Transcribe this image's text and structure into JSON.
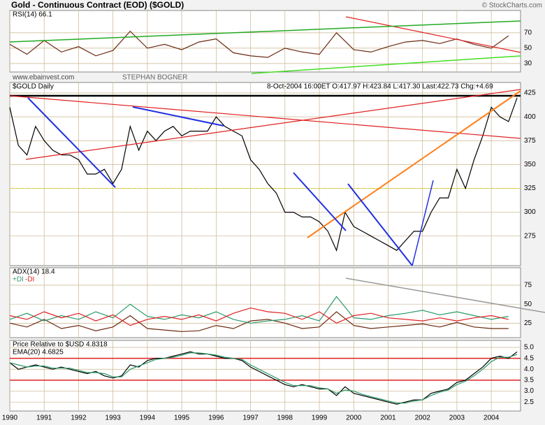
{
  "header": {
    "title": "Gold - Continuous Contract (EOD) ($GOLD)",
    "credit": "© StockCharts.com",
    "watermark": "www.ebainvest.com",
    "author": "STEPHAN BOGNER"
  },
  "chart_data": [
    {
      "type": "line",
      "xlim": [
        1990,
        2004.85
      ],
      "ylim": [
        19,
        99
      ],
      "yticks": [
        70,
        50,
        30
      ],
      "grid": true,
      "x": [
        1990,
        1990.5,
        1991,
        1991.5,
        1992,
        1992.5,
        1993,
        1993.5,
        1994,
        1994.5,
        1995,
        1995.5,
        1996,
        1996.5,
        1997,
        1997.5,
        1998,
        1998.5,
        1999,
        1999.5,
        2000,
        2000.5,
        2001,
        2001.5,
        2002,
        2002.5,
        2003,
        2003.5,
        2004,
        2004.5
      ],
      "series": [
        {
          "name": "RSI(14) 66.1",
          "color": "#6b2a10",
          "values": [
            55,
            42,
            60,
            45,
            52,
            40,
            47,
            72,
            50,
            55,
            48,
            58,
            62,
            44,
            40,
            38,
            50,
            45,
            42,
            70,
            48,
            45,
            52,
            58,
            60,
            56,
            62,
            55,
            50,
            66
          ]
        }
      ]
    },
    {
      "type": "line",
      "title": "$GOLD Daily",
      "subtitle": "8-Oct-2004 16:00ET O:417.97 H:423.84 L:417.30 Last:422.73 Chg:+4.69",
      "xlim": [
        1990,
        2004.85
      ],
      "ylim": [
        244,
        436
      ],
      "yticks": [
        425,
        400,
        375,
        350,
        325,
        300,
        275
      ],
      "grid": true,
      "reference_lines": [
        325
      ],
      "x": [
        1990,
        1990.25,
        1990.5,
        1990.75,
        1991,
        1991.25,
        1991.5,
        1991.75,
        1992,
        1992.25,
        1992.5,
        1992.75,
        1993,
        1993.25,
        1993.5,
        1993.75,
        1994,
        1994.25,
        1994.5,
        1994.75,
        1995,
        1995.25,
        1995.5,
        1995.75,
        1996,
        1996.25,
        1996.5,
        1996.75,
        1997,
        1997.25,
        1997.5,
        1997.75,
        1998,
        1998.25,
        1998.5,
        1998.75,
        1999,
        1999.25,
        1999.5,
        1999.75,
        2000,
        2000.25,
        2000.5,
        2000.75,
        2001,
        2001.25,
        2001.5,
        2001.75,
        2002,
        2002.25,
        2002.5,
        2002.75,
        2003,
        2003.25,
        2003.5,
        2003.75,
        2004,
        2004.25,
        2004.5,
        2004.75
      ],
      "series": [
        {
          "name": "$GOLD",
          "color": "#000000",
          "values": [
            410,
            370,
            360,
            390,
            375,
            365,
            360,
            360,
            355,
            340,
            340,
            345,
            330,
            345,
            390,
            365,
            385,
            375,
            385,
            390,
            380,
            385,
            385,
            385,
            400,
            390,
            385,
            380,
            355,
            345,
            330,
            320,
            300,
            300,
            295,
            295,
            290,
            280,
            260,
            300,
            285,
            280,
            275,
            270,
            265,
            260,
            270,
            280,
            280,
            300,
            315,
            315,
            345,
            325,
            355,
            380,
            410,
            400,
            395,
            420
          ]
        }
      ]
    },
    {
      "type": "line",
      "xlim": [
        1990,
        2004.85
      ],
      "ylim": [
        6,
        98
      ],
      "yticks": [
        75,
        50,
        25
      ],
      "grid": true,
      "x": [
        1990,
        1990.5,
        1991,
        1991.5,
        1992,
        1992.5,
        1993,
        1993.5,
        1994,
        1994.5,
        1995,
        1995.5,
        1996,
        1996.5,
        1997,
        1997.5,
        1998,
        1998.5,
        1999,
        1999.5,
        2000,
        2000.5,
        2001,
        2001.5,
        2002,
        2002.5,
        2003,
        2003.5,
        2004,
        2004.5
      ],
      "series": [
        {
          "name": "ADX(14) 18.4",
          "color": "#6b2a10",
          "values": [
            25,
            20,
            30,
            18,
            22,
            15,
            20,
            35,
            18,
            16,
            14,
            15,
            22,
            18,
            28,
            30,
            25,
            18,
            20,
            40,
            22,
            18,
            20,
            22,
            24,
            20,
            26,
            20,
            18,
            18
          ]
        },
        {
          "name": "+DI",
          "color": "#2a9a6a",
          "values": [
            30,
            38,
            28,
            35,
            30,
            40,
            32,
            50,
            34,
            30,
            36,
            32,
            40,
            30,
            25,
            28,
            30,
            35,
            28,
            60,
            32,
            30,
            35,
            38,
            42,
            36,
            40,
            35,
            30,
            34
          ]
        },
        {
          "name": "-DI",
          "color": "#e02020",
          "values": [
            35,
            30,
            40,
            32,
            38,
            28,
            36,
            22,
            30,
            34,
            30,
            36,
            28,
            38,
            45,
            40,
            38,
            30,
            40,
            25,
            35,
            38,
            32,
            30,
            28,
            32,
            28,
            32,
            35,
            30
          ]
        }
      ]
    },
    {
      "type": "line",
      "xlim": [
        1990,
        2004.85
      ],
      "ylim": [
        2.09,
        5.32
      ],
      "yticks": [
        {
          "value": 5,
          "label": "5.0"
        },
        4.5,
        {
          "value": 4,
          "label": "4.0"
        },
        3.5,
        {
          "value": 3,
          "label": "3.0"
        },
        2.5
      ],
      "grid": true,
      "reference_lines": [
        4.5,
        3.5
      ],
      "xticks": [
        1990,
        1991,
        1992,
        1993,
        1994,
        1995,
        1996,
        1997,
        1998,
        1999,
        2000,
        2001,
        2002,
        2003,
        2004
      ],
      "x": [
        1990,
        1990.25,
        1990.5,
        1990.75,
        1991,
        1991.25,
        1991.5,
        1991.75,
        1992,
        1992.25,
        1992.5,
        1992.75,
        1993,
        1993.25,
        1993.5,
        1993.75,
        1994,
        1994.25,
        1994.5,
        1994.75,
        1995,
        1995.25,
        1995.5,
        1995.75,
        1996,
        1996.25,
        1996.5,
        1996.75,
        1997,
        1997.25,
        1997.5,
        1997.75,
        1998,
        1998.25,
        1998.5,
        1998.75,
        1999,
        1999.25,
        1999.5,
        1999.75,
        2000,
        2000.25,
        2000.5,
        2000.75,
        2001,
        2001.25,
        2001.5,
        2001.75,
        2002,
        2002.25,
        2002.5,
        2002.75,
        2003,
        2003.25,
        2003.5,
        2003.75,
        2004,
        2004.25,
        2004.5,
        2004.75
      ],
      "series": [
        {
          "name": "Price Relative to $USD 4.8318",
          "color": "#000000",
          "values": [
            4.3,
            4.0,
            4.1,
            4.2,
            4.1,
            4.0,
            4.1,
            4.0,
            3.9,
            3.8,
            3.9,
            3.7,
            3.6,
            3.7,
            4.2,
            4.1,
            4.4,
            4.5,
            4.5,
            4.6,
            4.7,
            4.8,
            4.7,
            4.7,
            4.6,
            4.5,
            4.5,
            4.4,
            4.1,
            3.9,
            3.7,
            3.5,
            3.3,
            3.2,
            3.3,
            3.2,
            3.1,
            3.1,
            2.8,
            3.2,
            2.9,
            2.8,
            2.7,
            2.6,
            2.5,
            2.4,
            2.5,
            2.6,
            2.6,
            2.9,
            3.0,
            3.1,
            3.4,
            3.5,
            3.8,
            4.1,
            4.5,
            4.6,
            4.5,
            4.8
          ]
        },
        {
          "name": "EMA(20) 4.6825",
          "color": "#2a9a6a",
          "values": [
            4.3,
            4.2,
            4.1,
            4.15,
            4.15,
            4.05,
            4.05,
            4.05,
            3.95,
            3.85,
            3.85,
            3.8,
            3.65,
            3.65,
            4.0,
            4.15,
            4.3,
            4.45,
            4.5,
            4.55,
            4.65,
            4.75,
            4.75,
            4.7,
            4.65,
            4.55,
            4.5,
            4.45,
            4.2,
            4.0,
            3.8,
            3.6,
            3.4,
            3.25,
            3.25,
            3.25,
            3.15,
            3.1,
            2.9,
            3.05,
            3.0,
            2.85,
            2.75,
            2.65,
            2.55,
            2.45,
            2.45,
            2.55,
            2.6,
            2.8,
            2.95,
            3.05,
            3.3,
            3.45,
            3.7,
            4.0,
            4.35,
            4.55,
            4.55,
            4.68
          ]
        }
      ]
    }
  ]
}
